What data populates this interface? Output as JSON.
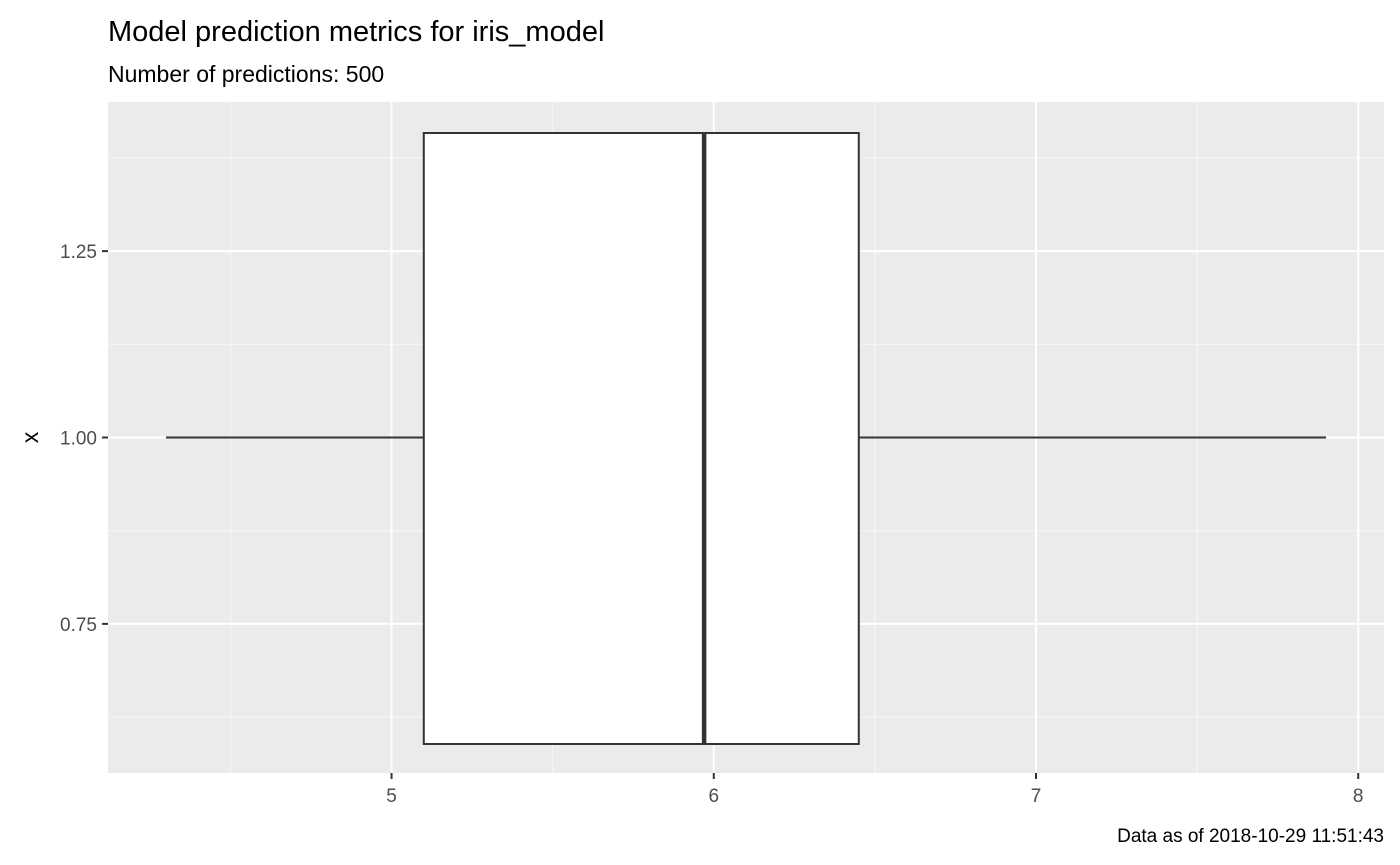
{
  "chart_data": {
    "type": "boxplot",
    "title": "Model prediction metrics for iris_model",
    "subtitle": "Number of predictions: 500",
    "caption": "Data as of 2018-10-29 11:51:43",
    "xlabel": "",
    "ylabel": "x",
    "x_ticks": [
      5,
      6,
      7,
      8
    ],
    "x_tick_labels": [
      "5",
      "6",
      "7",
      "8"
    ],
    "y_ticks": [
      0.75,
      1.0,
      1.25
    ],
    "y_tick_labels": [
      "0.75",
      "1.00",
      "1.25"
    ],
    "xlim": [
      4.12,
      8.08
    ],
    "ylim": [
      0.55,
      1.45
    ],
    "grid": true,
    "boxes": [
      {
        "y": 1.0,
        "whisker_low": 4.3,
        "q1": 5.1,
        "median": 5.97,
        "q3": 6.45,
        "whisker_high": 7.9,
        "box_y_min": 0.55,
        "box_y_max": 1.45
      }
    ],
    "colors": {
      "panel_background": "#ebebeb",
      "grid_major": "#ffffff",
      "grid_minor": "#f5f5f5",
      "box_fill": "#ffffff",
      "box_line": "#333333",
      "tick_text": "#4d4d4d"
    }
  }
}
